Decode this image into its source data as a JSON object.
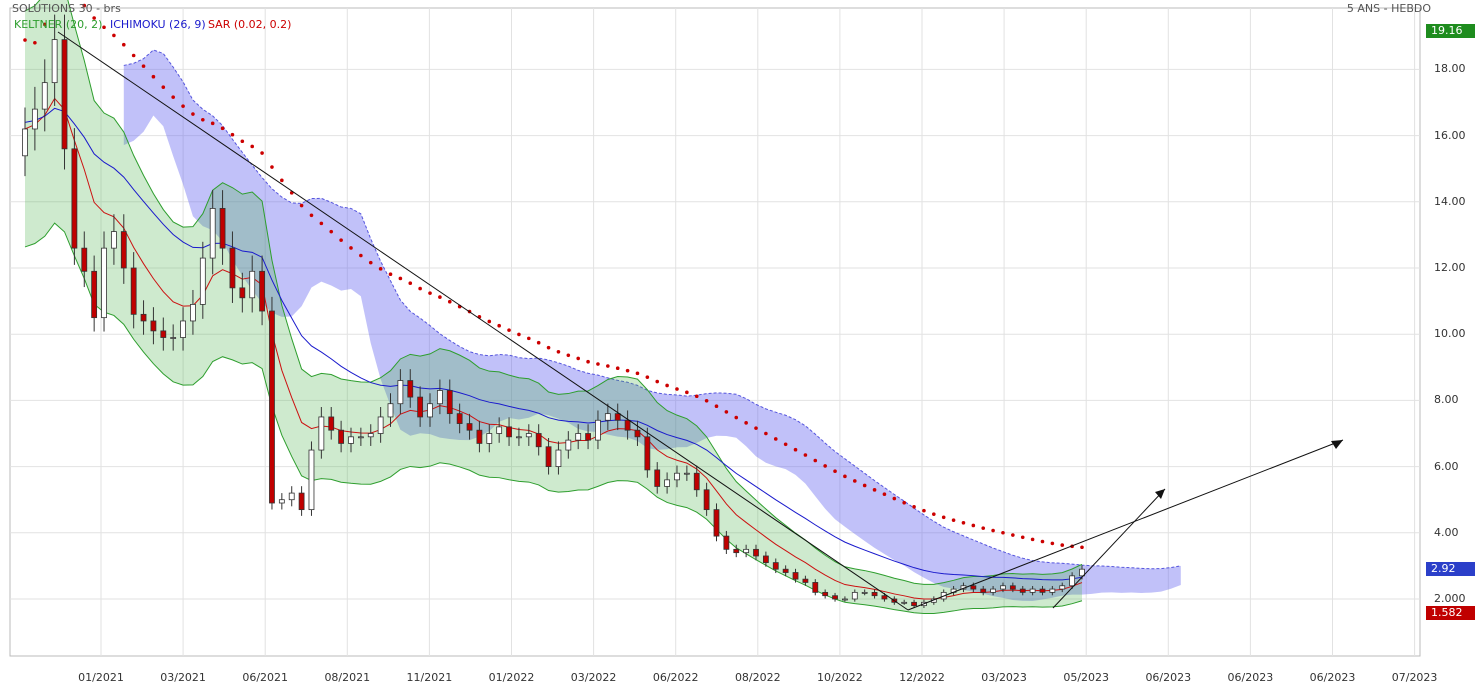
{
  "header": {
    "title": "SOLUTIONS 30 - brs",
    "period": "5 ANS - HEBDO"
  },
  "chart_data": {
    "type": "candlestick",
    "title": "SOLUTIONS 30 - brs",
    "indicators": [
      {
        "name": "KELTNER (20, 2)",
        "color": "#2e9e2e"
      },
      {
        "name": "ICHIMOKU (26, 9)",
        "color": "#1a1acc"
      },
      {
        "name": "SAR (0.02, 0.2)",
        "color": "#cc0000"
      }
    ],
    "y_ticks": [
      "18.00",
      "16.00",
      "14.00",
      "12.00",
      "10.00",
      "8.00",
      "6.00",
      "4.00",
      "2.000"
    ],
    "ylim": [
      0.5,
      19.3
    ],
    "x_ticks": [
      "01/2021",
      "03/2021",
      "06/2021",
      "08/2021",
      "11/2021",
      "01/2022",
      "03/2022",
      "06/2022",
      "08/2022",
      "10/2022",
      "12/2022",
      "03/2023",
      "05/2023",
      "06/2023",
      "06/2023",
      "06/2023",
      "07/2023"
    ],
    "price_tags": [
      {
        "value": 19.16,
        "label": "19.16",
        "color": "#1e8c1e"
      },
      {
        "value": 2.92,
        "label": "2.92",
        "color": "#2b3fc9"
      },
      {
        "value": 1.582,
        "label": "1.582",
        "color": "#c00000"
      }
    ],
    "grid": true,
    "close": [
      16.2,
      16.8,
      17.6,
      18.9,
      15.6,
      12.6,
      11.9,
      10.5,
      12.6,
      13.1,
      12.0,
      10.6,
      10.4,
      10.1,
      9.9,
      9.9,
      10.4,
      10.9,
      12.3,
      13.8,
      12.6,
      11.4,
      11.1,
      11.9,
      10.7,
      4.9,
      5.0,
      5.2,
      4.7,
      6.5,
      7.5,
      7.1,
      6.7,
      6.9,
      6.9,
      7.0,
      7.5,
      7.9,
      8.6,
      8.1,
      7.5,
      7.9,
      8.3,
      7.6,
      7.3,
      7.1,
      6.7,
      7.0,
      7.2,
      6.9,
      6.9,
      7.0,
      6.6,
      6.0,
      6.5,
      6.8,
      7.0,
      6.8,
      7.4,
      7.6,
      7.4,
      7.1,
      6.9,
      5.9,
      5.4,
      5.6,
      5.8,
      5.8,
      5.3,
      4.7,
      3.9,
      3.5,
      3.4,
      3.5,
      3.3,
      3.1,
      2.9,
      2.8,
      2.6,
      2.5,
      2.2,
      2.1,
      2.0,
      2.0,
      2.2,
      2.2,
      2.1,
      2.0,
      1.9,
      1.9,
      1.8,
      1.9,
      2.0,
      2.2,
      2.3,
      2.4,
      2.3,
      2.2,
      2.3,
      2.4,
      2.3,
      2.2,
      2.3,
      2.2,
      2.3,
      2.4,
      2.7,
      2.9
    ]
  }
}
